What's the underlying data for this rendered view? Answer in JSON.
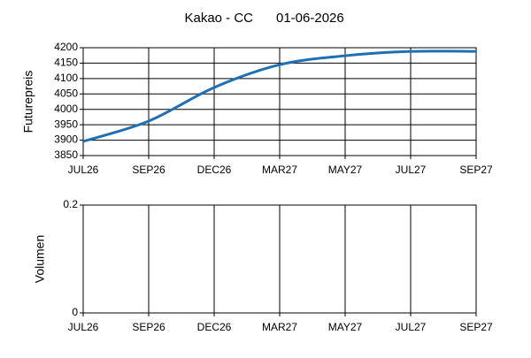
{
  "chart_data": [
    {
      "type": "line",
      "title": "Kakao - CC",
      "subtitle": "01-06-2026",
      "ylabel": "Futurepreis",
      "categories": [
        "JUL26",
        "SEP26",
        "DEC26",
        "MAR27",
        "MAY27",
        "JUL27",
        "SEP27"
      ],
      "values": [
        3896,
        3962,
        4071,
        4145,
        4174,
        4188,
        4188
      ],
      "color": "#1f6fb5",
      "ylim": [
        3850,
        4200
      ],
      "yticks": [
        3850,
        3900,
        3950,
        4000,
        4050,
        4100,
        4150,
        4200
      ],
      "grid": true
    },
    {
      "type": "bar",
      "ylabel": "Volumen",
      "categories": [
        "JUL26",
        "SEP26",
        "DEC26",
        "MAR27",
        "MAY27",
        "JUL27",
        "SEP27"
      ],
      "ylim": [
        0,
        0.2
      ],
      "yticks": [
        0,
        0.2
      ],
      "grid": true
    }
  ]
}
